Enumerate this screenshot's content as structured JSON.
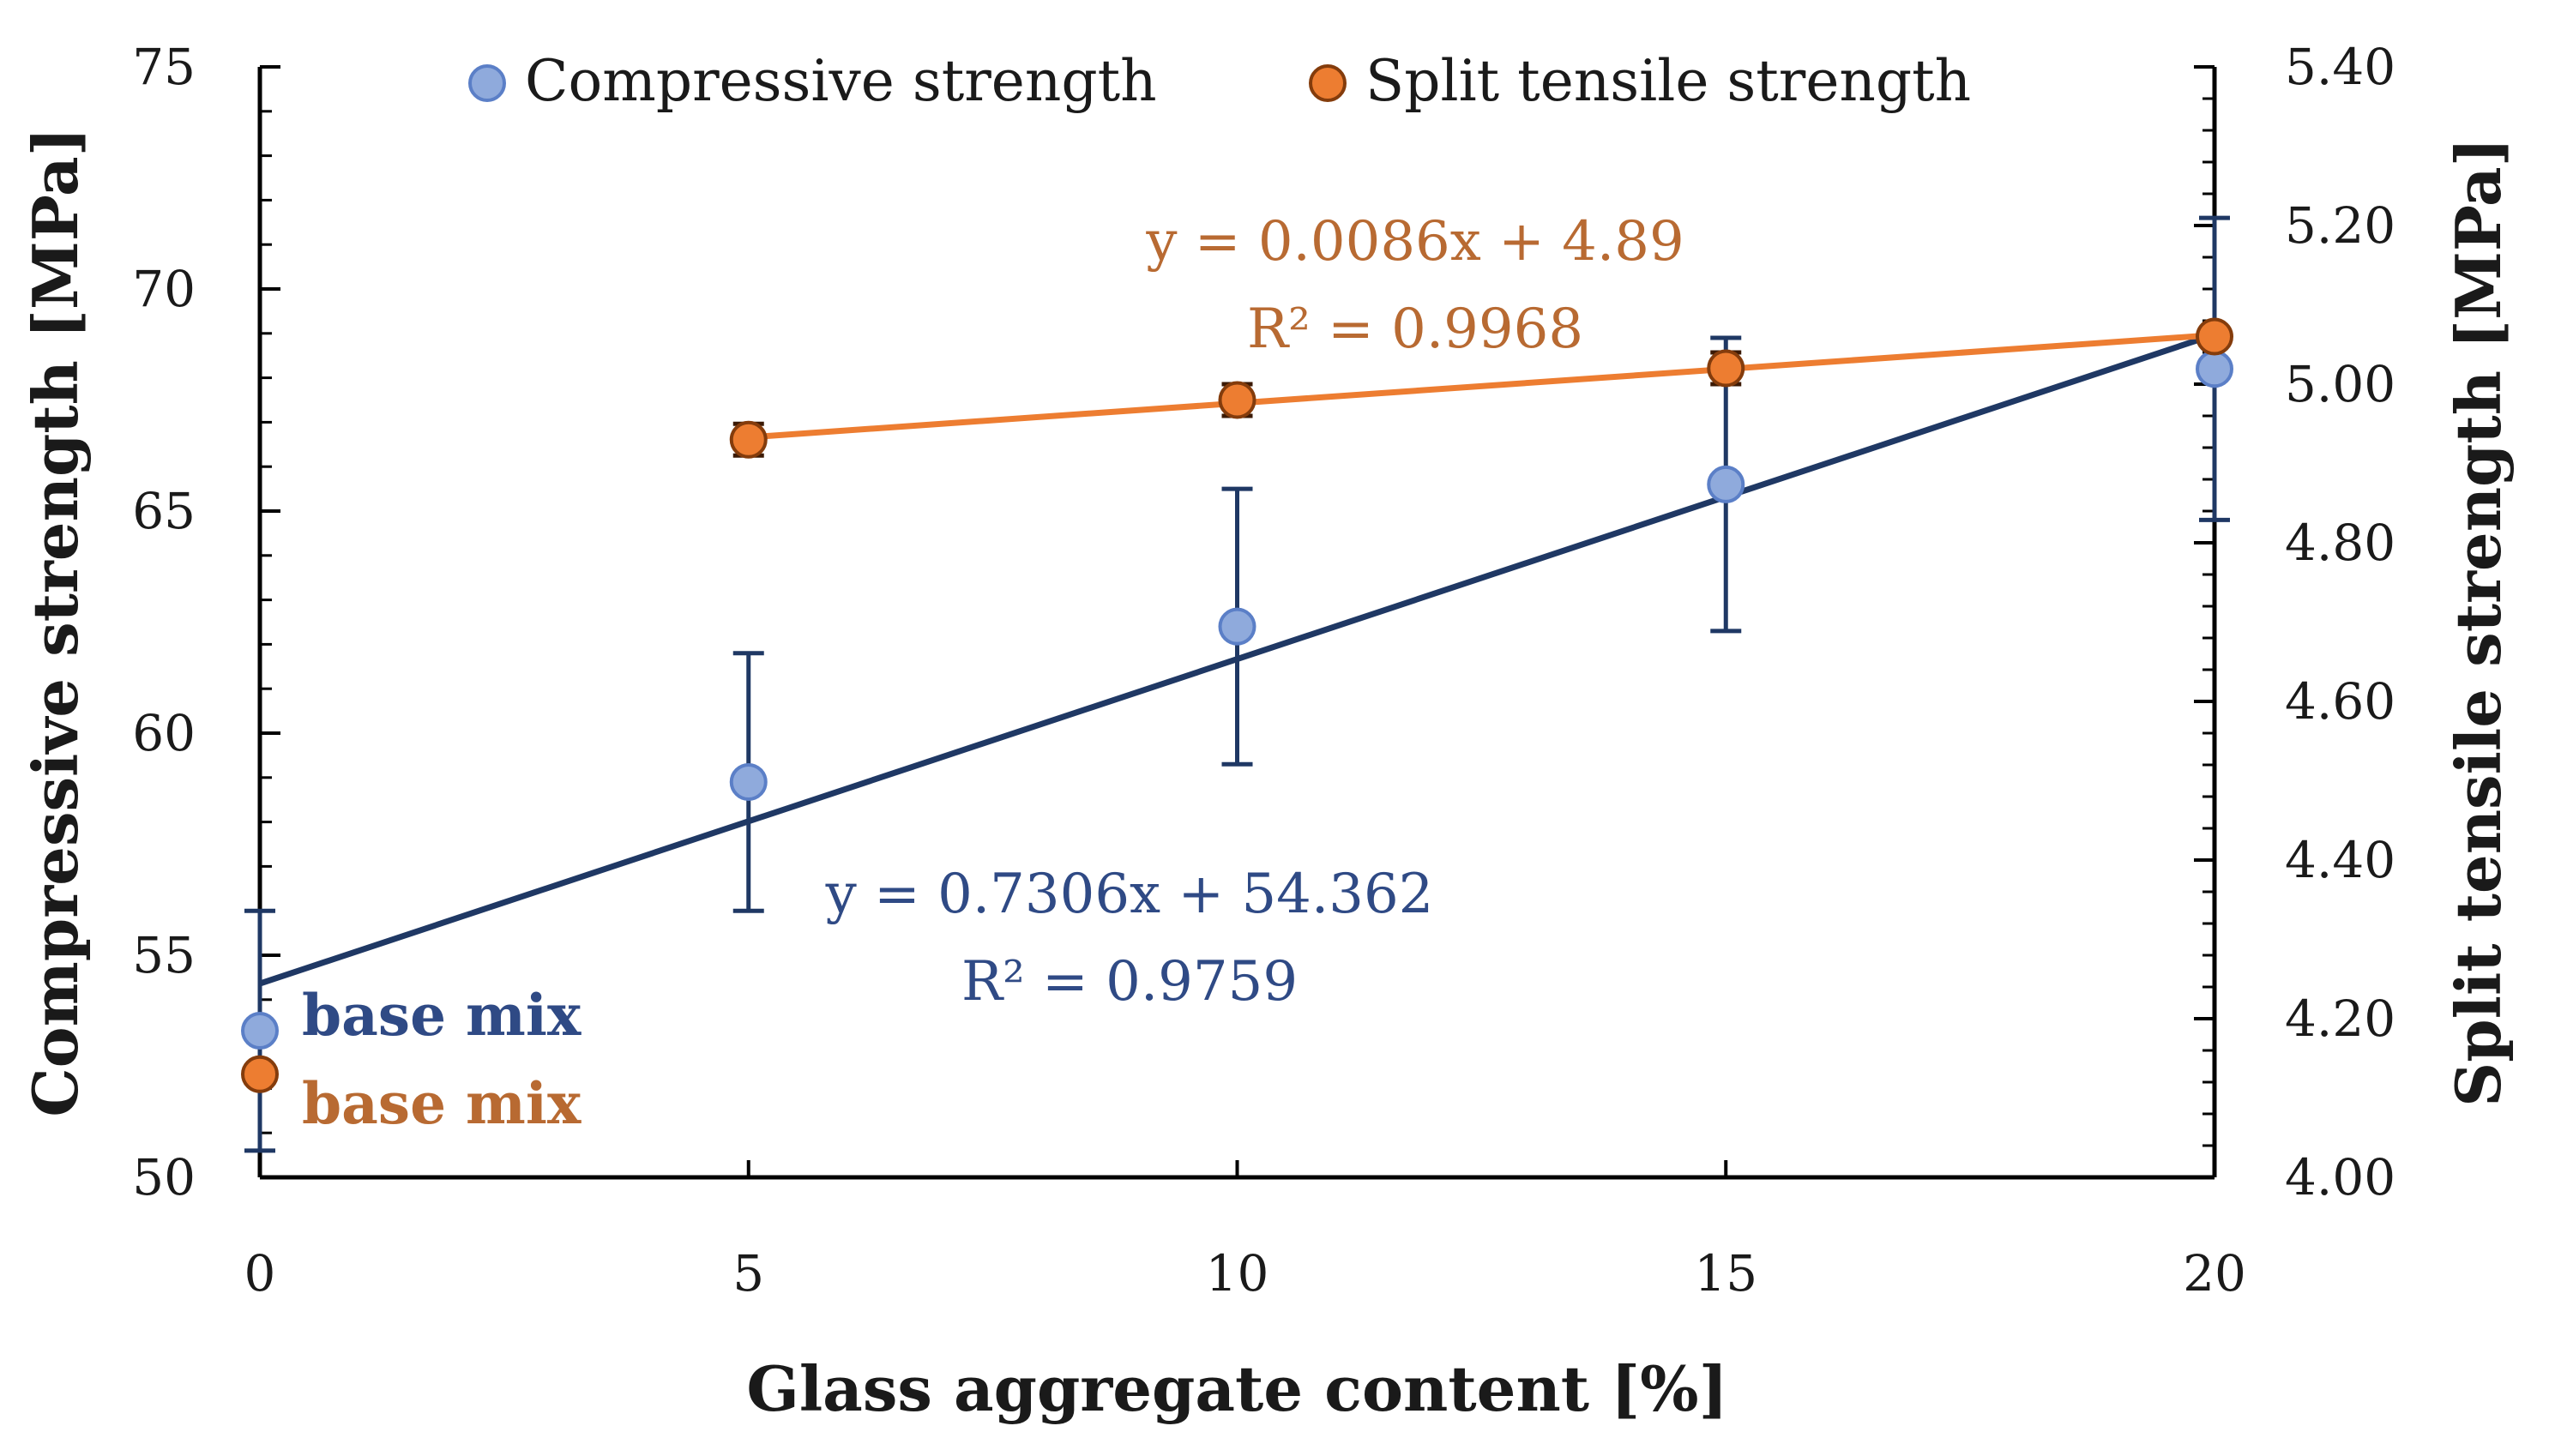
{
  "chart_data": {
    "type": "scatter",
    "title": "",
    "xlabel": "Glass aggregate content [%]",
    "ylabel_left": "Compressive strength [MPa]",
    "ylabel_right": "Split tensile strength [MPa]",
    "xlim": [
      0,
      20
    ],
    "ylim_left": [
      50,
      75
    ],
    "ylim_right": [
      4.0,
      5.4
    ],
    "x_ticks": [
      "0",
      "5",
      "10",
      "15",
      "20"
    ],
    "y_left_ticks": [
      "50",
      "55",
      "60",
      "65",
      "70",
      "75"
    ],
    "y_right_ticks": [
      "4.00",
      "4.20",
      "4.40",
      "4.60",
      "4.80",
      "5.00",
      "5.20",
      "5.40"
    ],
    "legend_position": "top",
    "series": [
      {
        "name": "Compressive strength",
        "axis": "left",
        "marker_color": "#8FAADC",
        "marker_edge": "#5B7FC7",
        "error_color": "#1F3864",
        "x": [
          0,
          5,
          10,
          15,
          20
        ],
        "y": [
          53.3,
          58.9,
          62.4,
          65.6,
          68.2
        ],
        "err": [
          2.7,
          2.9,
          3.1,
          3.3,
          3.4
        ],
        "trendline": {
          "slope": 0.7306,
          "intercept": 54.362,
          "color": "#1F3864",
          "x_range": [
            0,
            20
          ],
          "equation": "y = 0.7306x + 54.362",
          "r2": "R² = 0.9759"
        }
      },
      {
        "name": "Split tensile strength",
        "axis": "right",
        "marker_color": "#ED7D31",
        "marker_edge": "#843C0C",
        "error_color": "#3B1A05",
        "x": [
          0,
          5,
          10,
          15,
          20
        ],
        "y": [
          4.13,
          4.93,
          4.98,
          5.02,
          5.06
        ],
        "err": [
          0.0,
          0.02,
          0.02,
          0.02,
          0.0
        ],
        "trendline": {
          "slope": 0.0086,
          "intercept": 4.89,
          "color": "#ED7D31",
          "x_range": [
            5,
            20
          ],
          "equation": "y = 0.0086x + 4.89",
          "r2": "R² = 0.9968"
        }
      }
    ],
    "annotations": {
      "base_mix_compressive": "base mix",
      "base_mix_tensile": "base mix"
    },
    "colors": {
      "compressive_text": "#2F4A85",
      "tensile_text": "#B86A32"
    }
  }
}
